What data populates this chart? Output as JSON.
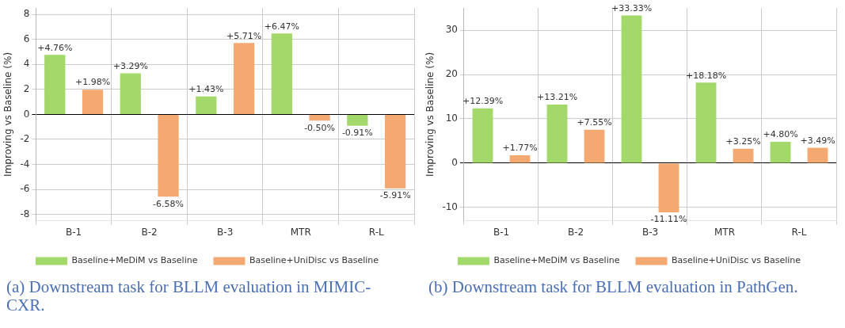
{
  "chart_data": [
    {
      "type": "bar",
      "ylabel": "Improving vs Baseline (%)",
      "categories": [
        "B-1",
        "B-2",
        "B-3",
        "MTR",
        "R-L"
      ],
      "series": [
        {
          "name": "Baseline+MeDiM vs Baseline",
          "color": "#a3d86a",
          "values": [
            4.76,
            3.29,
            1.43,
            6.47,
            -0.91
          ],
          "value_labels": [
            "+4.76%",
            "+3.29%",
            "+1.43%",
            "+6.47%",
            "-0.91%"
          ]
        },
        {
          "name": "Baseline+UniDisc vs Baseline",
          "color": "#f4a973",
          "values": [
            1.98,
            -6.58,
            5.71,
            -0.5,
            -5.91
          ],
          "value_labels": [
            "+1.98%",
            "-6.58%",
            "+5.71%",
            "-0.50%",
            "-5.91%"
          ]
        }
      ],
      "ylim": [
        -8.5,
        8.5
      ],
      "yticks": [
        -8,
        -6,
        -4,
        -2,
        0,
        2,
        4,
        6,
        8
      ],
      "grid": true,
      "legend": "bottom",
      "annotations": [
        "(a) Downstream task for BLLM evaluation in MIMIC-CXR."
      ]
    },
    {
      "type": "bar",
      "ylabel": "Improving vs Baseline (%)",
      "categories": [
        "B-1",
        "B-2",
        "B-3",
        "MTR",
        "R-L"
      ],
      "series": [
        {
          "name": "Baseline+MeDiM vs Baseline",
          "color": "#a3d86a",
          "values": [
            12.39,
            13.21,
            33.33,
            18.18,
            4.8
          ],
          "value_labels": [
            "+12.39%",
            "+13.21%",
            "+33.33%",
            "+18.18%",
            "+4.80%"
          ]
        },
        {
          "name": "Baseline+UniDisc vs Baseline",
          "color": "#f4a973",
          "values": [
            1.77,
            7.55,
            -11.11,
            3.25,
            3.49
          ],
          "value_labels": [
            "+1.77%",
            "+7.55%",
            "-11.11%",
            "+3.25%",
            "+3.49%"
          ]
        }
      ],
      "ylim": [
        -13,
        35
      ],
      "yticks": [
        -10,
        0,
        10,
        20,
        30
      ],
      "grid": true,
      "legend": "bottom",
      "annotations": [
        "(b) Downstream task for BLLM evaluation in PathGen."
      ]
    }
  ]
}
